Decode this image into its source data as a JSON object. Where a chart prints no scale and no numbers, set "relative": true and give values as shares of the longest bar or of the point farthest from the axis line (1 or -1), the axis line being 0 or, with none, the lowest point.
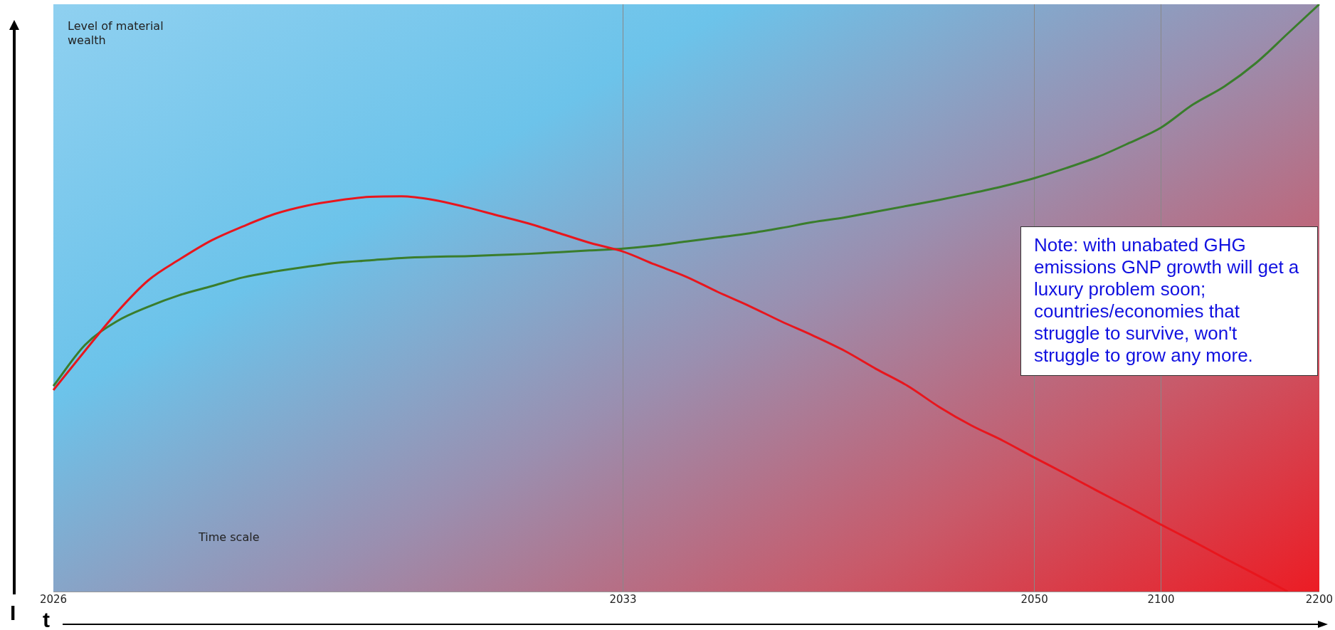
{
  "chart_data": {
    "type": "line",
    "ylabel": "Level of material wealth",
    "xlabel": "Time scale",
    "annotations": [
      "Note: with unabated GHG emissions GNP growth will get a luxury problem soon; countries/economies that struggle to survive, won't struggle to grow any more.",
      "I",
      "t"
    ],
    "categories": [
      "2026",
      null,
      null,
      null,
      null,
      null,
      null,
      null,
      null,
      null,
      null,
      null,
      null,
      null,
      null,
      null,
      null,
      null,
      "2033",
      null,
      null,
      null,
      null,
      null,
      null,
      null,
      null,
      null,
      null,
      null,
      null,
      "2050",
      null,
      null,
      null,
      "2100",
      null,
      null,
      null,
      null,
      "2200"
    ],
    "relative": true,
    "grid": "x",
    "legend": false,
    "marker": "none",
    "line_style": "solid",
    "series": [
      {
        "color": "#e8161d",
        "values": [
          0.343,
          0.41,
          0.475,
          0.53,
          0.566,
          0.598,
          0.622,
          0.643,
          0.657,
          0.666,
          0.672,
          0.673,
          0.667,
          0.655,
          0.641,
          0.627,
          0.61,
          0.593,
          0.579,
          0.557,
          0.536,
          0.51,
          0.486,
          0.46,
          0.436,
          0.41,
          0.379,
          0.35,
          0.314,
          0.283,
          0.257,
          0.228,
          0.2,
          0.171,
          0.143,
          0.114,
          0.086,
          0.057,
          0.029,
          0,
          null
        ]
      },
      {
        "color": "#3a7d2c",
        "values": [
          0.35,
          0.42,
          0.46,
          0.485,
          0.505,
          0.52,
          0.535,
          0.545,
          0.553,
          0.56,
          0.564,
          0.568,
          0.57,
          0.571,
          0.573,
          0.575,
          0.578,
          0.581,
          0.584,
          0.589,
          0.596,
          0.603,
          0.61,
          0.619,
          0.629,
          0.637,
          0.647,
          0.657,
          0.667,
          0.678,
          0.69,
          0.704,
          0.721,
          0.74,
          0.764,
          0.79,
          0.829,
          0.86,
          0.9,
          0.95,
          1
        ]
      }
    ]
  }
}
